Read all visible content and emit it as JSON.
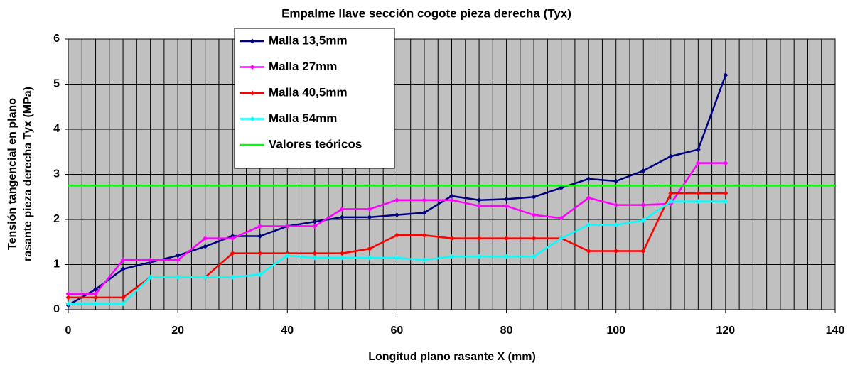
{
  "chart_data": {
    "type": "line",
    "title": "Empalme llave sección cogote pieza derecha (Tyx)",
    "x_label": "Longitud plano rasante X (mm)",
    "y_label": [
      "Tensión tangencial en plano",
      "rasante pieza derecha Tyx (MPa)"
    ],
    "xlim": [
      0,
      140
    ],
    "xticks": [
      0,
      20,
      40,
      60,
      80,
      100,
      120,
      140
    ],
    "ylim": [
      0,
      6
    ],
    "yticks": [
      0,
      1,
      2,
      3,
      4,
      5,
      6
    ],
    "grid": true,
    "xgrid_step": 2.5,
    "plot_background": "#c0c0c0",
    "legend": "top-left",
    "series": [
      {
        "name": "Malla 13,5mm",
        "color": "#000080",
        "marker": true,
        "x": [
          0,
          5,
          10,
          15,
          20,
          25,
          30,
          35,
          40,
          45,
          50,
          55,
          60,
          65,
          70,
          75,
          80,
          85,
          90,
          95,
          100,
          105,
          110,
          115,
          120
        ],
        "values": [
          0.1,
          0.45,
          0.9,
          1.05,
          1.2,
          1.4,
          1.63,
          1.63,
          1.85,
          1.95,
          2.05,
          2.05,
          2.1,
          2.15,
          2.52,
          2.43,
          2.45,
          2.5,
          2.7,
          2.9,
          2.85,
          3.08,
          3.4,
          3.55,
          5.2
        ]
      },
      {
        "name": "Malla 27mm",
        "color": "#ff00ff",
        "marker": true,
        "x": [
          0,
          5,
          10,
          15,
          20,
          25,
          30,
          35,
          40,
          45,
          50,
          55,
          60,
          65,
          70,
          75,
          80,
          85,
          90,
          95,
          100,
          105,
          110,
          115,
          120
        ],
        "values": [
          0.35,
          0.35,
          1.1,
          1.1,
          1.1,
          1.58,
          1.58,
          1.85,
          1.85,
          1.85,
          2.23,
          2.23,
          2.43,
          2.43,
          2.43,
          2.3,
          2.3,
          2.1,
          2.03,
          2.48,
          2.32,
          2.32,
          2.35,
          3.25,
          3.25
        ]
      },
      {
        "name": "Malla 40,5mm",
        "color": "#ff0000",
        "marker": true,
        "x": [
          0,
          5,
          10,
          15,
          20,
          25,
          30,
          35,
          40,
          45,
          50,
          55,
          60,
          65,
          70,
          75,
          80,
          85,
          90,
          95,
          100,
          105,
          110,
          115,
          120
        ],
        "values": [
          0.27,
          0.27,
          0.27,
          0.72,
          0.72,
          0.72,
          1.25,
          1.25,
          1.25,
          1.25,
          1.25,
          1.35,
          1.65,
          1.65,
          1.58,
          1.58,
          1.58,
          1.58,
          1.58,
          1.3,
          1.3,
          1.3,
          2.58,
          2.58,
          2.58
        ]
      },
      {
        "name": "Malla 54mm",
        "color": "#00ffff",
        "marker": true,
        "x": [
          0,
          5,
          10,
          15,
          20,
          25,
          30,
          35,
          40,
          45,
          50,
          55,
          60,
          65,
          70,
          75,
          80,
          85,
          90,
          95,
          100,
          105,
          110,
          115,
          120
        ],
        "values": [
          0.13,
          0.13,
          0.13,
          0.72,
          0.72,
          0.72,
          0.72,
          0.78,
          1.2,
          1.15,
          1.15,
          1.15,
          1.15,
          1.1,
          1.18,
          1.18,
          1.18,
          1.18,
          1.58,
          1.88,
          1.88,
          1.98,
          2.4,
          2.4,
          2.4
        ]
      },
      {
        "name": "Valores teóricos",
        "color": "#00ff00",
        "marker": false,
        "x": [
          0,
          140
        ],
        "values": [
          2.75,
          2.75
        ]
      }
    ]
  }
}
